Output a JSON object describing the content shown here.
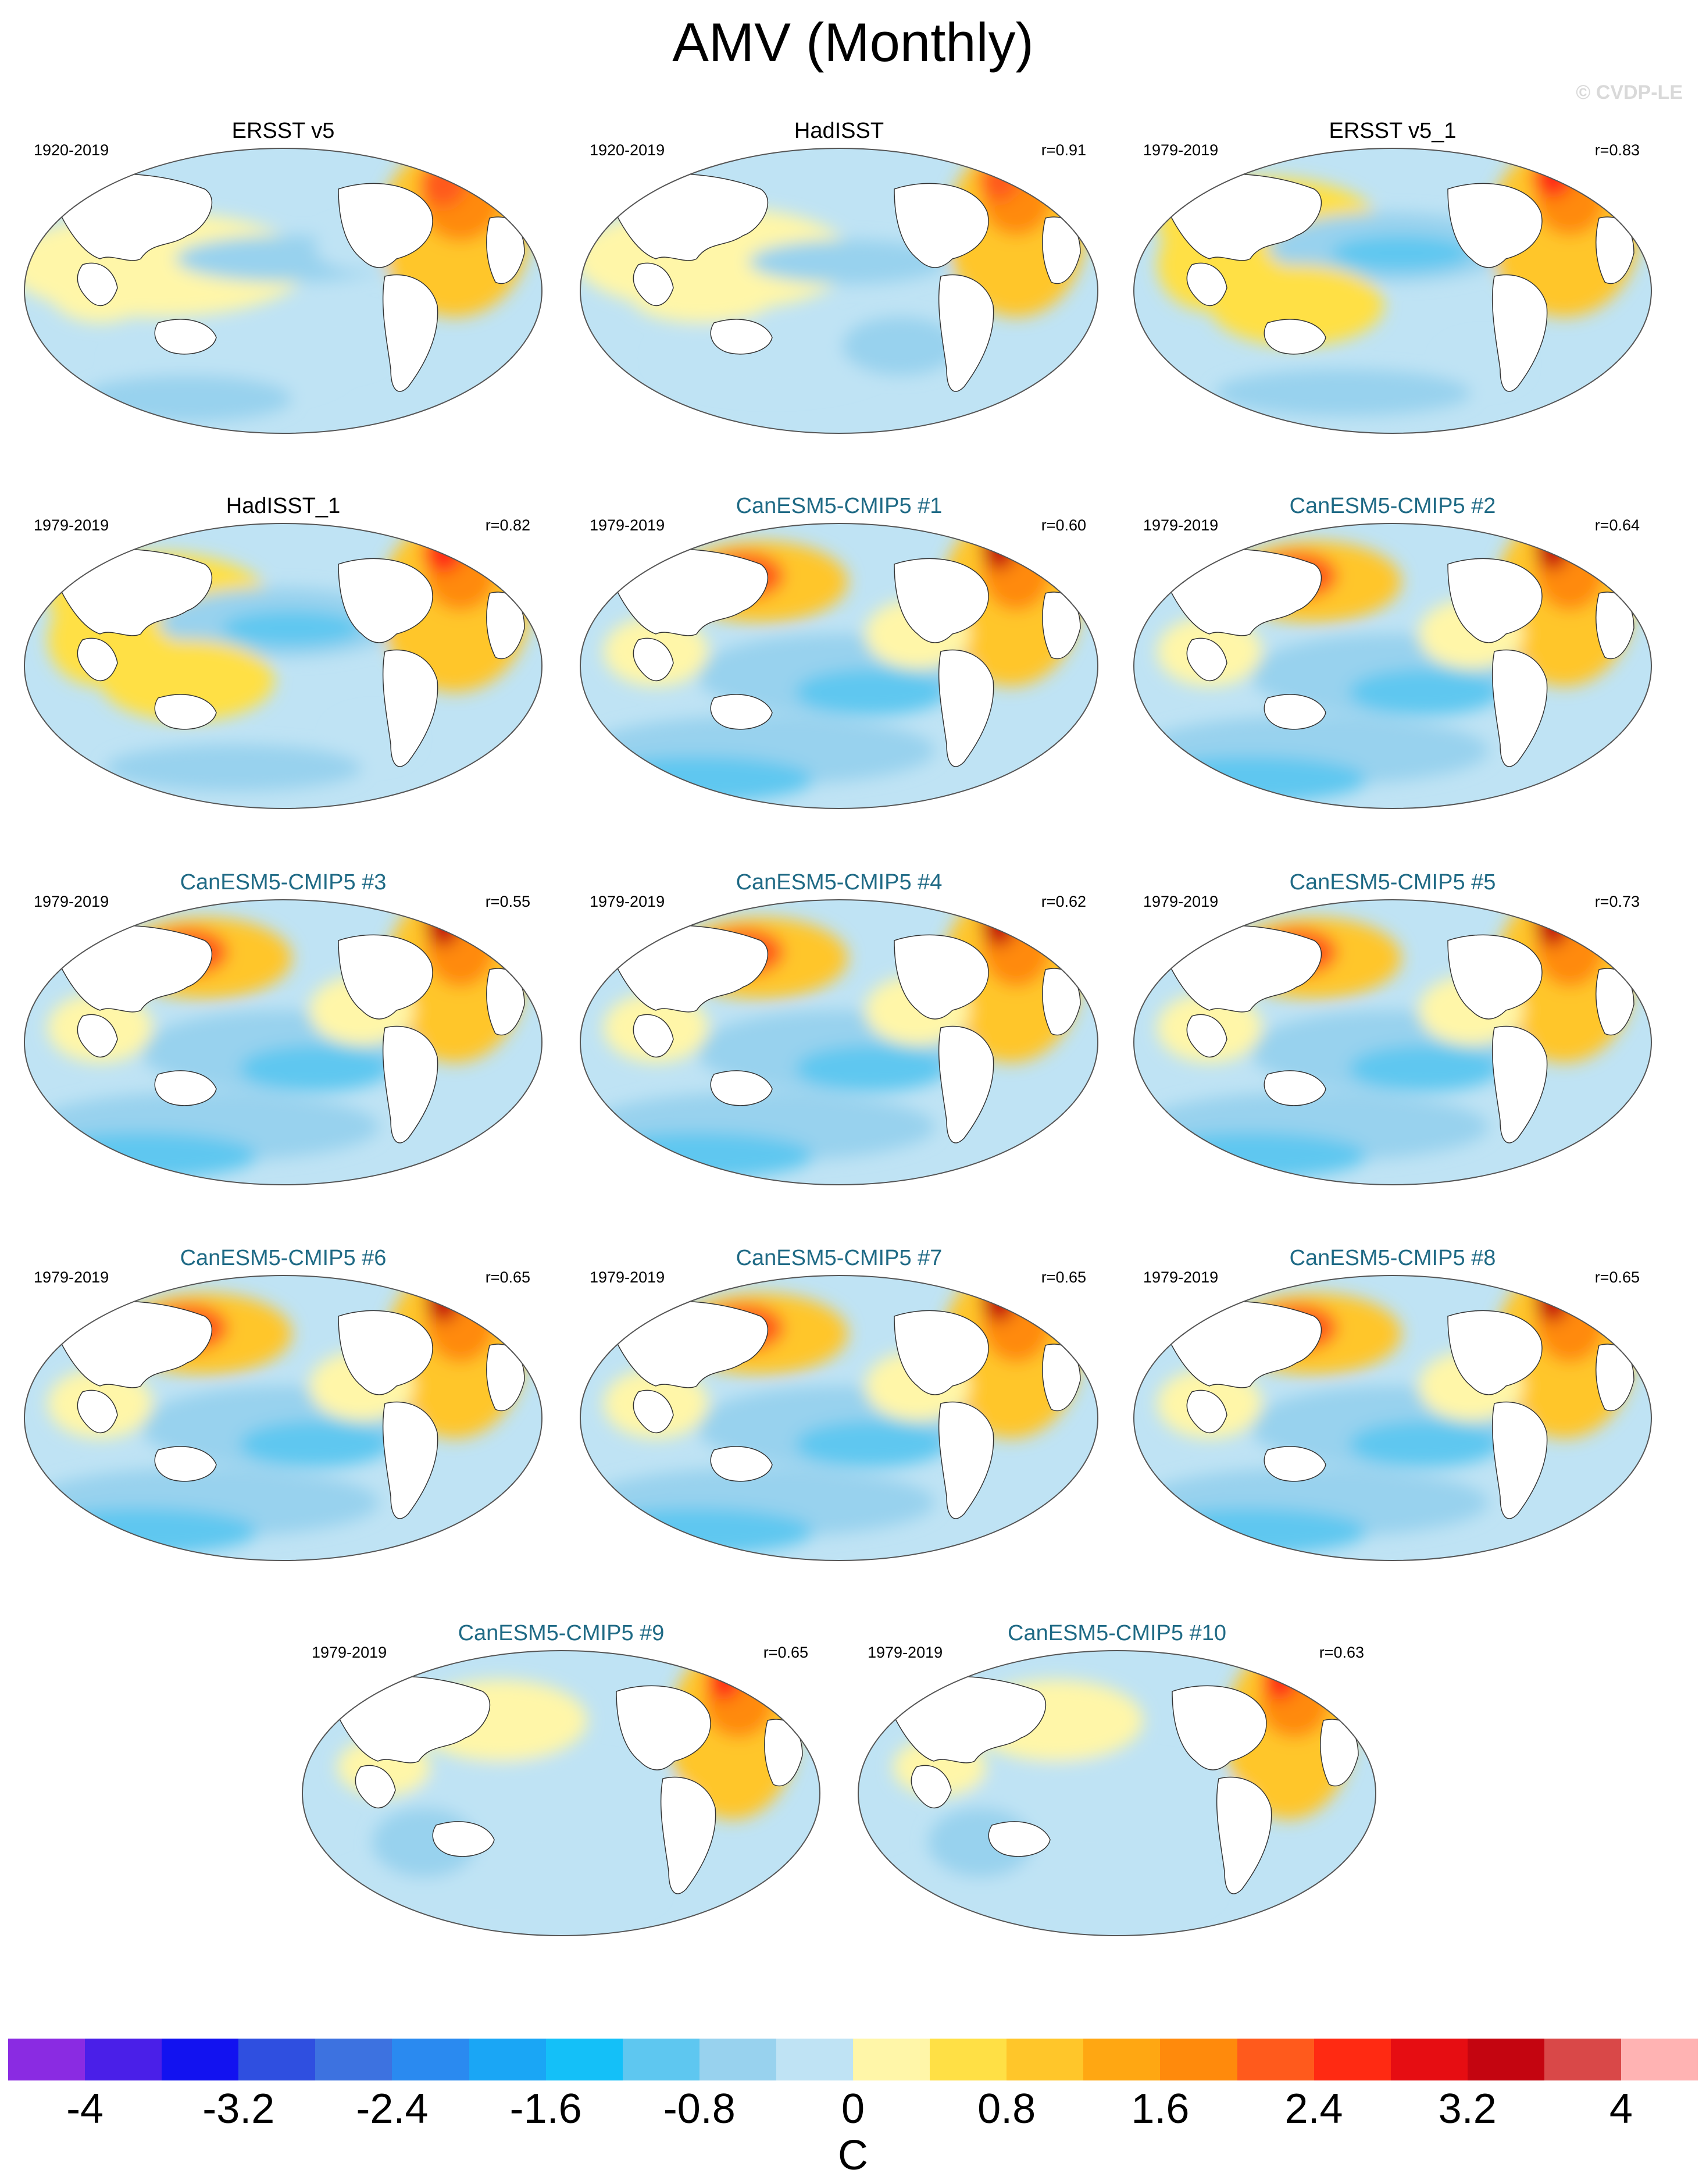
{
  "title": "AMV (Monthly)",
  "watermark": "© CVDP-LE",
  "panels": [
    {
      "title": "ERSST v5",
      "period": "1920-2019",
      "r": "",
      "kind": "obs",
      "pattern": "obs_a"
    },
    {
      "title": "HadISST",
      "period": "1920-2019",
      "r": "r=0.91",
      "kind": "obs",
      "pattern": "obs_b"
    },
    {
      "title": "ERSST v5_1",
      "period": "1979-2019",
      "r": "r=0.83",
      "kind": "obs",
      "pattern": "obs_c"
    },
    {
      "title": "HadISST_1",
      "period": "1979-2019",
      "r": "r=0.82",
      "kind": "obs",
      "pattern": "obs_c"
    },
    {
      "title": "CanESM5-CMIP5 #1",
      "period": "1979-2019",
      "r": "r=0.60",
      "kind": "model",
      "pattern": "model"
    },
    {
      "title": "CanESM5-CMIP5 #2",
      "period": "1979-2019",
      "r": "r=0.64",
      "kind": "model",
      "pattern": "model"
    },
    {
      "title": "CanESM5-CMIP5 #3",
      "period": "1979-2019",
      "r": "r=0.55",
      "kind": "model",
      "pattern": "model"
    },
    {
      "title": "CanESM5-CMIP5 #4",
      "period": "1979-2019",
      "r": "r=0.62",
      "kind": "model",
      "pattern": "model"
    },
    {
      "title": "CanESM5-CMIP5 #5",
      "period": "1979-2019",
      "r": "r=0.73",
      "kind": "model",
      "pattern": "model"
    },
    {
      "title": "CanESM5-CMIP5 #6",
      "period": "1979-2019",
      "r": "r=0.65",
      "kind": "model",
      "pattern": "model"
    },
    {
      "title": "CanESM5-CMIP5 #7",
      "period": "1979-2019",
      "r": "r=0.65",
      "kind": "model",
      "pattern": "model"
    },
    {
      "title": "CanESM5-CMIP5 #8",
      "period": "1979-2019",
      "r": "r=0.65",
      "kind": "model",
      "pattern": "model"
    },
    {
      "title": "CanESM5-CMIP5 #9",
      "period": "1979-2019",
      "r": "r=0.65",
      "kind": "model",
      "pattern": "model_weak"
    },
    {
      "title": "CanESM5-CMIP5 #10",
      "period": "1979-2019",
      "r": "r=0.63",
      "kind": "model",
      "pattern": "model_weak"
    }
  ],
  "colorbar": {
    "units": "C",
    "colors": [
      "#8a2be2",
      "#4a1fe8",
      "#1212f0",
      "#2f4fe0",
      "#3d72e0",
      "#2a8af0",
      "#1aa6f5",
      "#14c0f8",
      "#5ec7f0",
      "#98d2ee",
      "#bfe3f4",
      "#fff6a8",
      "#ffe045",
      "#ffc62a",
      "#ffa712",
      "#ff8a0c",
      "#ff5a1c",
      "#ff2a12",
      "#e60d12",
      "#c40510",
      "#d94848",
      "#ffb3b3"
    ],
    "tick_labels": [
      "-4",
      "-3.2",
      "-2.4",
      "-1.6",
      "-0.8",
      "0",
      "0.8",
      "1.6",
      "2.4",
      "3.2",
      "4"
    ],
    "tick_values": [
      -4,
      -3.2,
      -2.4,
      -1.6,
      -0.8,
      0,
      0.8,
      1.6,
      2.4,
      3.2,
      4
    ],
    "range": [
      -4.4,
      4.4
    ]
  }
}
